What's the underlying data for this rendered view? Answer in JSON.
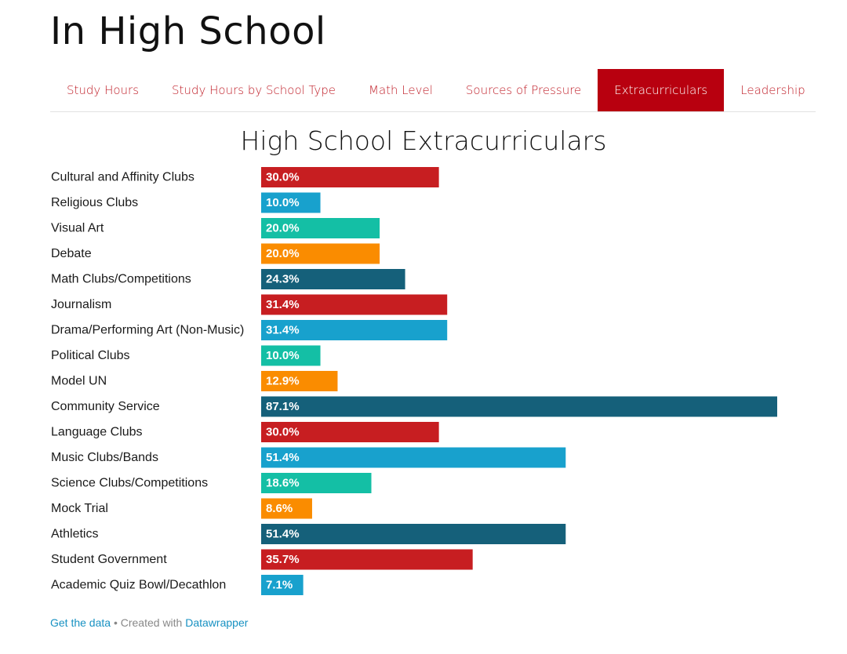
{
  "page": {
    "title": "In High School"
  },
  "tabs": [
    {
      "label": "Study Hours",
      "active": false
    },
    {
      "label": "Study Hours by School Type",
      "active": false
    },
    {
      "label": "Math Level",
      "active": false
    },
    {
      "label": "Sources of Pressure",
      "active": false
    },
    {
      "label": "Extracurriculars",
      "active": true
    },
    {
      "label": "Leadership",
      "active": false
    }
  ],
  "colors": {
    "accent": "#b8000f",
    "tab_text": "#c0202a",
    "palette": [
      "#c71e21",
      "#18a1cd",
      "#14bfa5",
      "#fa8c00",
      "#15607a"
    ],
    "link": "#1791c2"
  },
  "footer": {
    "get_data": "Get the data",
    "separator": " • Created with ",
    "datawrapper": "Datawrapper"
  },
  "chart_data": {
    "type": "bar",
    "orientation": "horizontal",
    "title": "High School Extracurriculars",
    "xlabel": "",
    "ylabel": "",
    "xlim": [
      0,
      87.1
    ],
    "grid": false,
    "legend": "none",
    "value_suffix": "%",
    "categories": [
      "Cultural and Affinity Clubs",
      "Religious Clubs",
      "Visual Art",
      "Debate",
      "Math Clubs/Competitions",
      "Journalism",
      "Drama/Performing Art (Non-Music)",
      "Political Clubs",
      "Model UN",
      "Community Service",
      "Language Clubs",
      "Music Clubs/Bands",
      "Science Clubs/Competitions",
      "Mock Trial",
      "Athletics",
      "Student Government",
      "Academic Quiz Bowl/Decathlon"
    ],
    "values": [
      30.0,
      10.0,
      20.0,
      20.0,
      24.3,
      31.4,
      31.4,
      10.0,
      12.9,
      87.1,
      30.0,
      51.4,
      18.6,
      8.6,
      51.4,
      35.7,
      7.1
    ],
    "labels": [
      "30.0%",
      "10.0%",
      "20.0%",
      "20.0%",
      "24.3%",
      "31.4%",
      "31.4%",
      "10.0%",
      "12.9%",
      "87.1%",
      "30.0%",
      "51.4%",
      "18.6%",
      "8.6%",
      "51.4%",
      "35.7%",
      "7.1%"
    ]
  }
}
